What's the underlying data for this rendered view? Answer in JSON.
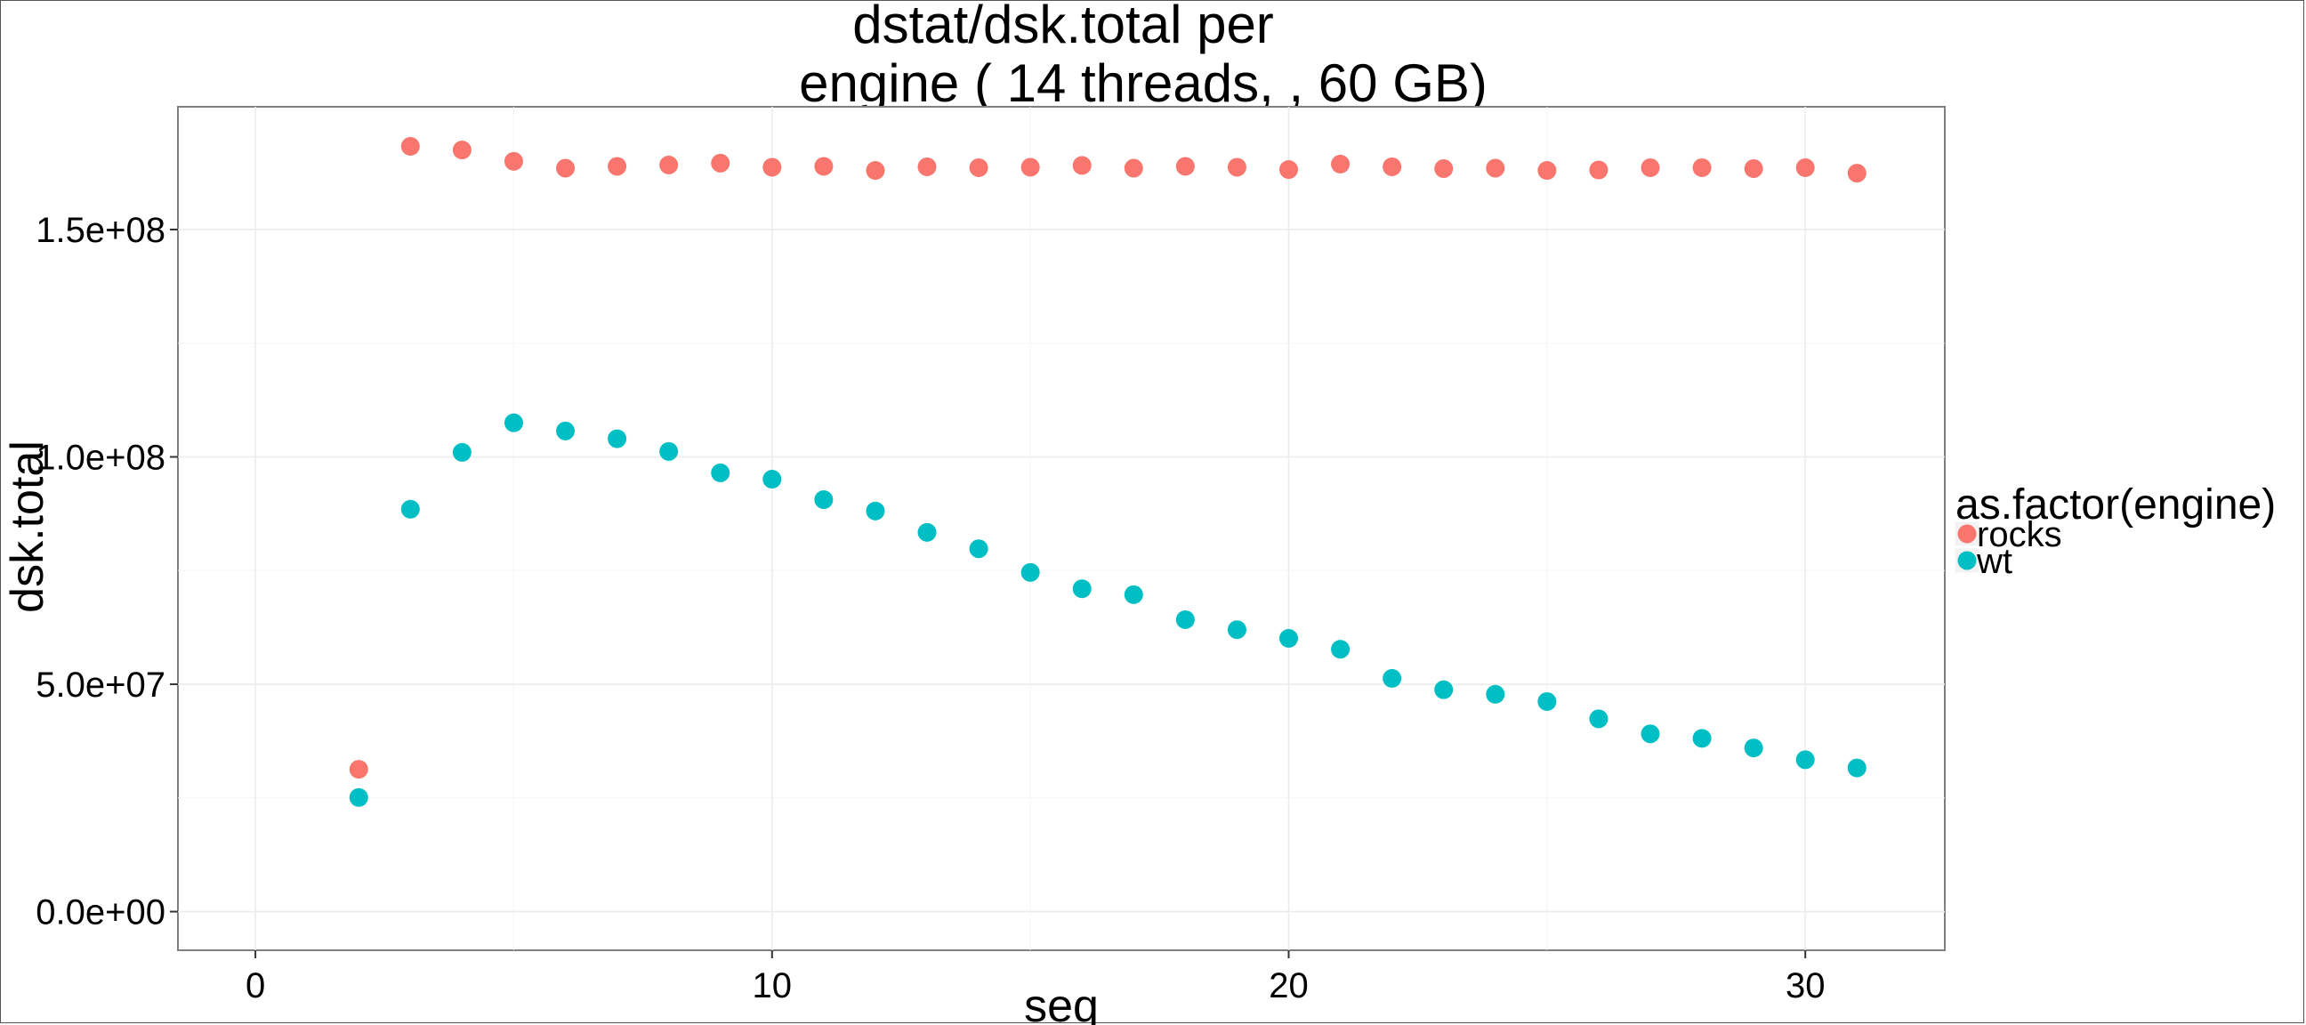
{
  "chart_data": {
    "type": "scatter",
    "title_lines": [
      "dstat/dsk.total per",
      "engine ( 14  threads, , 60 GB)"
    ],
    "xlabel": "seq",
    "ylabel": "dsk.total",
    "xlim": [
      -1.5,
      32.7
    ],
    "ylim": [
      -8500000,
      177000000
    ],
    "x_ticks": [
      0,
      10,
      20,
      30
    ],
    "x_tick_labels": [
      "0",
      "10",
      "20",
      "30"
    ],
    "y_ticks": [
      0,
      50000000,
      100000000,
      150000000
    ],
    "y_tick_labels": [
      "0.0e+00",
      "5.0e+07",
      "1.0e+08",
      "1.5e+08"
    ],
    "x_minor": [
      5,
      15,
      25
    ],
    "y_minor": [
      25000000,
      75000000,
      125000000
    ],
    "grid": true,
    "legend": {
      "title": "as.factor(engine)",
      "placement": "right"
    },
    "series": [
      {
        "name": "rocks",
        "color": "#F8766D",
        "x": [
          2,
          3,
          4,
          5,
          6,
          7,
          8,
          9,
          10,
          11,
          12,
          13,
          14,
          15,
          16,
          17,
          18,
          19,
          20,
          21,
          22,
          23,
          24,
          25,
          26,
          27,
          28,
          29,
          30,
          31
        ],
        "y": [
          31300000,
          168300000,
          167500000,
          165000000,
          163500000,
          163900000,
          164200000,
          164600000,
          163700000,
          163900000,
          163000000,
          163800000,
          163600000,
          163700000,
          164100000,
          163500000,
          163900000,
          163700000,
          163200000,
          164400000,
          163800000,
          163400000,
          163500000,
          163000000,
          163100000,
          163600000,
          163600000,
          163400000,
          163600000,
          162400000
        ]
      },
      {
        "name": "wt",
        "color": "#00BFC4",
        "x": [
          2,
          3,
          4,
          5,
          6,
          7,
          8,
          9,
          10,
          11,
          12,
          13,
          14,
          15,
          16,
          17,
          18,
          19,
          20,
          21,
          22,
          23,
          24,
          25,
          26,
          27,
          28,
          29,
          30,
          31
        ],
        "y": [
          25100000,
          88500000,
          101000000,
          107500000,
          105700000,
          104000000,
          101200000,
          96500000,
          95100000,
          90600000,
          88100000,
          83400000,
          79800000,
          74600000,
          71000000,
          69700000,
          64200000,
          62000000,
          60100000,
          57700000,
          51300000,
          48800000,
          47800000,
          46200000,
          42400000,
          39100000,
          38100000,
          36000000,
          33400000,
          31600000
        ]
      }
    ]
  }
}
